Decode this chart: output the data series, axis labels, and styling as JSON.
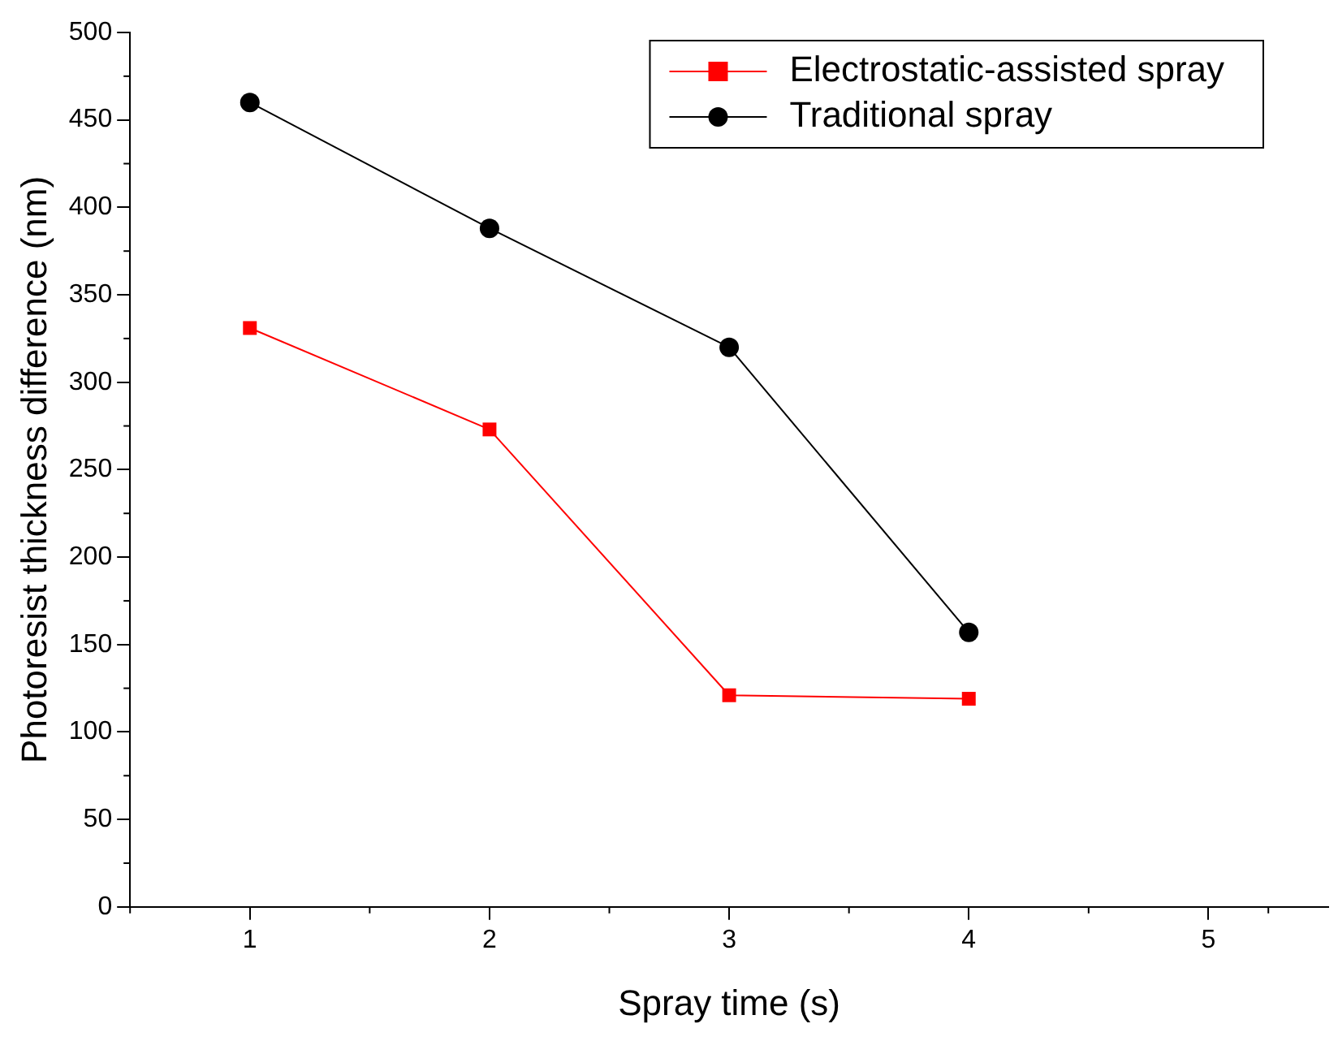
{
  "chart_data": {
    "type": "line",
    "xlabel": "Spray time (s)",
    "ylabel": "Photoresist thickness difference (nm)",
    "x": [
      1,
      2,
      3,
      4
    ],
    "series": [
      {
        "name": "Electrostatic-assisted spray",
        "color": "#ff0000",
        "marker": "square",
        "values": [
          331,
          273,
          121,
          119
        ]
      },
      {
        "name": "Traditional spray",
        "color": "#000000",
        "marker": "circle",
        "values": [
          460,
          388,
          320,
          157
        ]
      }
    ],
    "xlim": [
      0.5,
      5.5
    ],
    "xticks": [
      1,
      2,
      3,
      4,
      5
    ],
    "ylim": [
      0,
      500
    ],
    "yticks": [
      0,
      50,
      100,
      150,
      200,
      250,
      300,
      350,
      400,
      450,
      500
    ],
    "grid": false,
    "legend": "top right",
    "line_style": "solid"
  }
}
